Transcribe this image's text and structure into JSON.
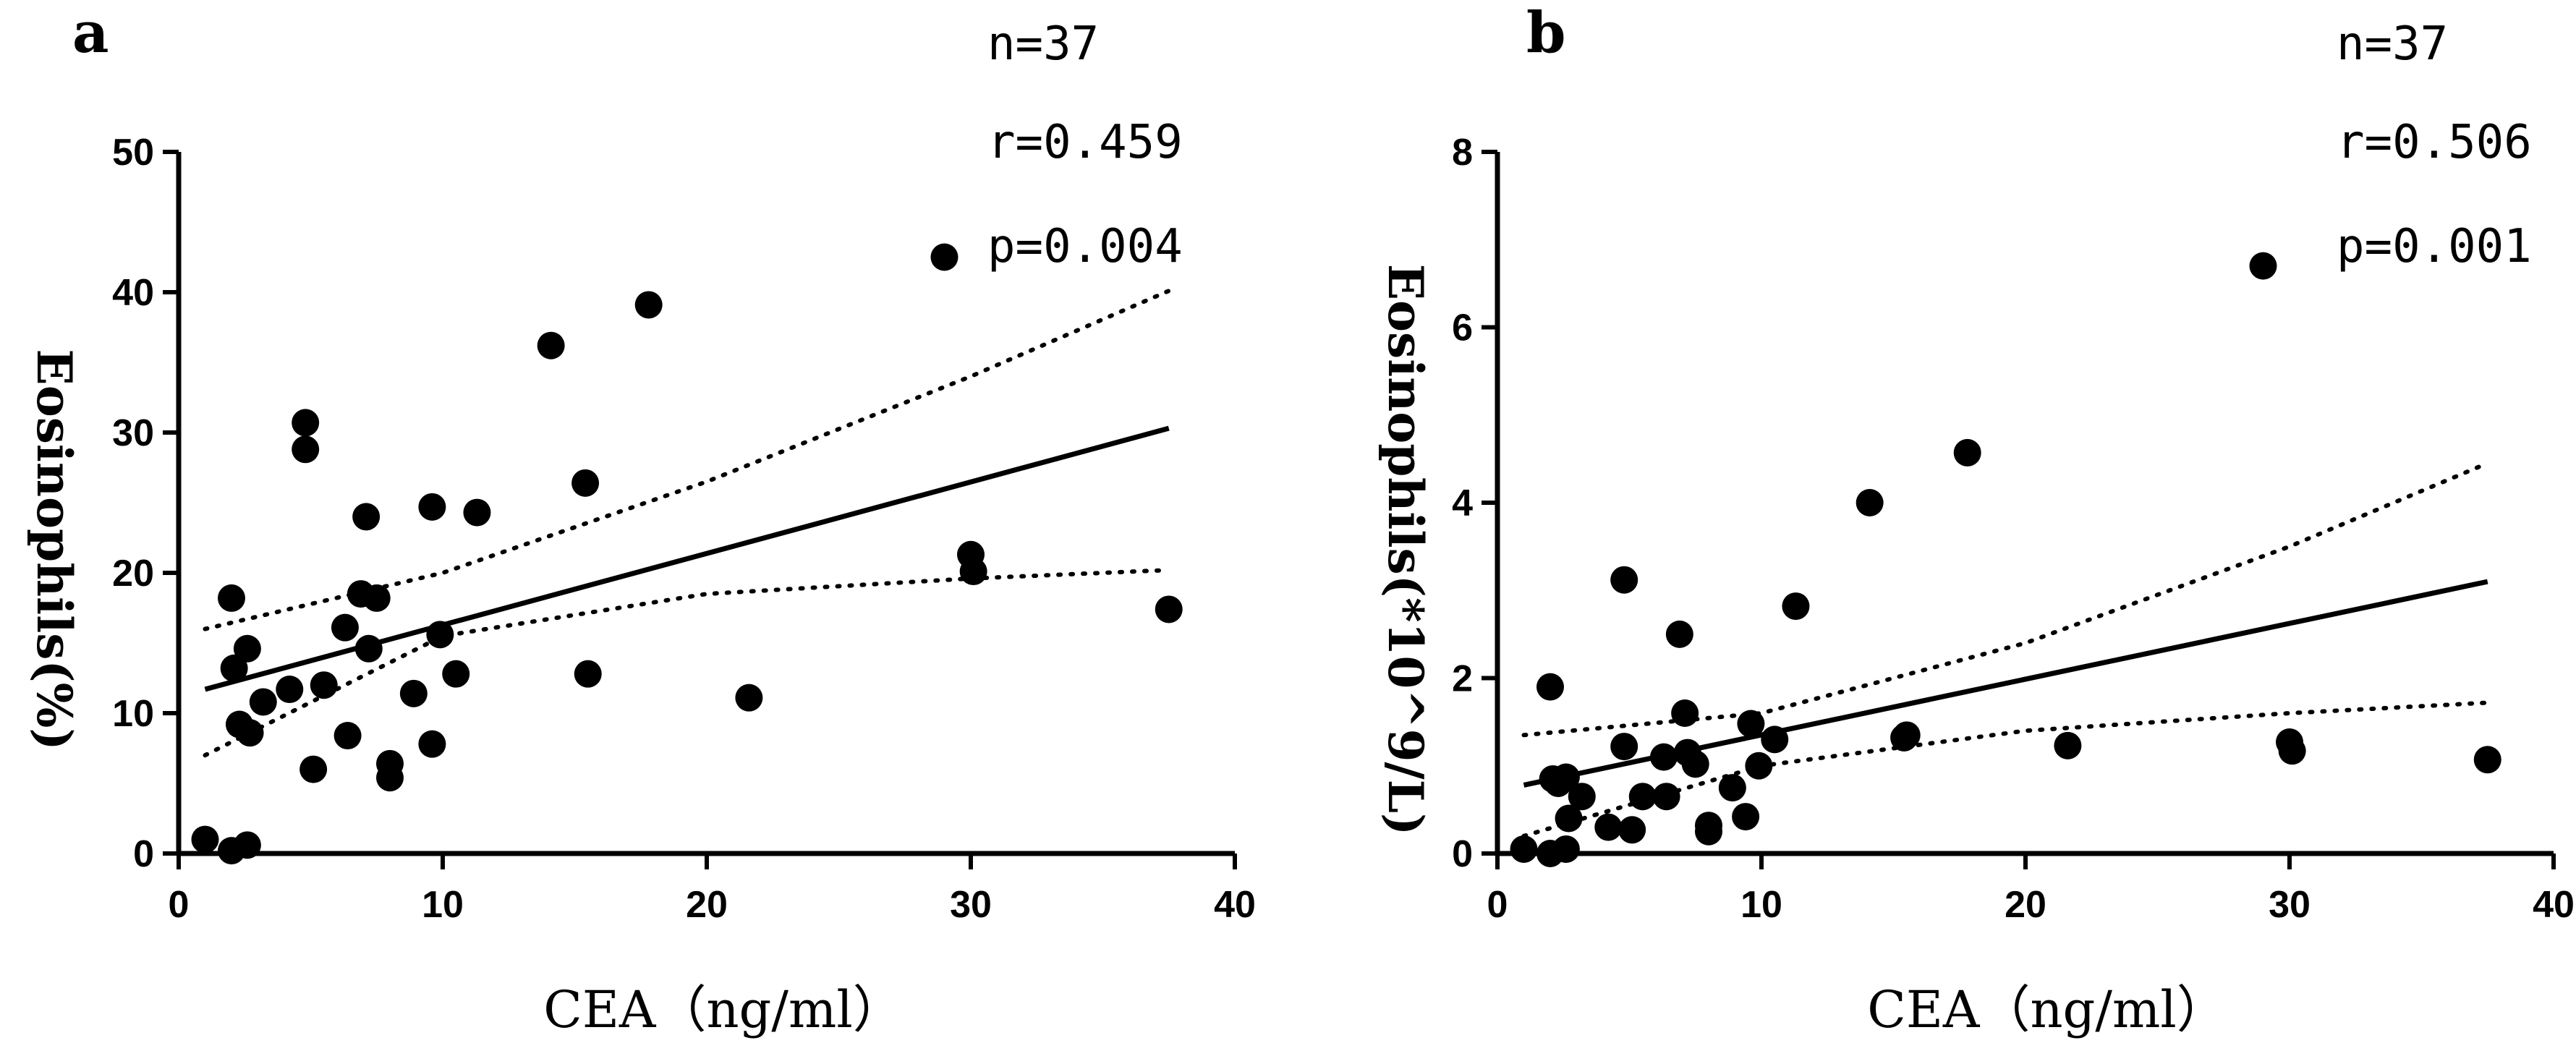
{
  "chart_data": [
    {
      "type": "scatter",
      "panel": "a",
      "title": "",
      "xlabel": "CEA（ng/ml）",
      "ylabel": "Eosinophils(%)",
      "xlim": [
        0,
        40
      ],
      "ylim": [
        0,
        50
      ],
      "xticks": [
        0,
        10,
        20,
        30,
        40
      ],
      "yticks": [
        0,
        10,
        20,
        30,
        40,
        50
      ],
      "stats": {
        "n": "n=37",
        "r": "r=0.459",
        "p": "p=0.004"
      },
      "points": [
        [
          1.0,
          1.0
        ],
        [
          2.0,
          0.2
        ],
        [
          2.6,
          0.6
        ],
        [
          2.0,
          18.2
        ],
        [
          2.1,
          13.2
        ],
        [
          2.3,
          9.2
        ],
        [
          2.6,
          14.6
        ],
        [
          2.7,
          8.6
        ],
        [
          3.2,
          10.8
        ],
        [
          4.2,
          11.7
        ],
        [
          4.8,
          30.7
        ],
        [
          4.8,
          28.8
        ],
        [
          5.1,
          6.0
        ],
        [
          5.5,
          12.0
        ],
        [
          6.3,
          16.1
        ],
        [
          6.4,
          8.4
        ],
        [
          6.9,
          18.5
        ],
        [
          7.1,
          24.0
        ],
        [
          7.2,
          14.6
        ],
        [
          7.5,
          18.2
        ],
        [
          8.0,
          6.4
        ],
        [
          8.0,
          5.4
        ],
        [
          8.9,
          11.4
        ],
        [
          9.6,
          24.7
        ],
        [
          9.6,
          7.8
        ],
        [
          9.9,
          15.6
        ],
        [
          10.5,
          12.8
        ],
        [
          11.3,
          24.3
        ],
        [
          14.1,
          36.2
        ],
        [
          15.4,
          26.4
        ],
        [
          15.5,
          12.8
        ],
        [
          17.8,
          39.1
        ],
        [
          21.6,
          11.1
        ],
        [
          29.0,
          42.5
        ],
        [
          30.0,
          21.3
        ],
        [
          30.1,
          20.1
        ],
        [
          37.5,
          17.4
        ]
      ],
      "fit": {
        "x": [
          1.0,
          37.5
        ],
        "y": [
          11.7,
          30.3
        ]
      },
      "ci_upper": {
        "x": [
          1.0,
          10,
          20,
          30,
          37.5
        ],
        "y": [
          16.0,
          20.0,
          26.5,
          34.0,
          40.1
        ]
      },
      "ci_lower": {
        "x": [
          1.0,
          10,
          20,
          30,
          37.5
        ],
        "y": [
          7.0,
          15.5,
          18.5,
          19.6,
          20.2
        ]
      }
    },
    {
      "type": "scatter",
      "panel": "b",
      "title": "",
      "xlabel": "CEA（ng/ml）",
      "ylabel": "Eosinophils(*10^9/L)",
      "xlim": [
        0,
        40
      ],
      "ylim": [
        0,
        8
      ],
      "xticks": [
        0,
        10,
        20,
        30,
        40
      ],
      "yticks": [
        0,
        2,
        4,
        6,
        8
      ],
      "stats": {
        "n": "n=37",
        "r": "r=0.506",
        "p": "p=0.001"
      },
      "points": [
        [
          1.0,
          0.05
        ],
        [
          2.0,
          1.9
        ],
        [
          2.0,
          0.0
        ],
        [
          2.1,
          0.85
        ],
        [
          2.3,
          0.8
        ],
        [
          2.6,
          0.87
        ],
        [
          2.6,
          0.05
        ],
        [
          2.7,
          0.4
        ],
        [
          3.2,
          0.65
        ],
        [
          4.2,
          0.3
        ],
        [
          4.8,
          3.12
        ],
        [
          4.8,
          1.22
        ],
        [
          5.1,
          0.27
        ],
        [
          5.5,
          0.65
        ],
        [
          6.3,
          1.1
        ],
        [
          6.4,
          0.65
        ],
        [
          6.9,
          2.5
        ],
        [
          7.1,
          1.6
        ],
        [
          7.2,
          1.15
        ],
        [
          7.5,
          1.02
        ],
        [
          8.0,
          0.25
        ],
        [
          8.0,
          0.32
        ],
        [
          8.9,
          0.75
        ],
        [
          9.4,
          0.42
        ],
        [
          9.6,
          1.48
        ],
        [
          9.9,
          1.0
        ],
        [
          10.5,
          1.3
        ],
        [
          11.3,
          2.82
        ],
        [
          14.1,
          4.0
        ],
        [
          15.4,
          1.32
        ],
        [
          15.5,
          1.35
        ],
        [
          17.8,
          4.57
        ],
        [
          21.6,
          1.23
        ],
        [
          29.0,
          6.7
        ],
        [
          30.0,
          1.27
        ],
        [
          30.1,
          1.17
        ],
        [
          37.5,
          1.07
        ]
      ],
      "fit": {
        "x": [
          1.0,
          37.5
        ],
        "y": [
          0.78,
          3.1
        ]
      },
      "ci_upper": {
        "x": [
          1.0,
          10,
          20,
          30,
          37.5
        ],
        "y": [
          1.35,
          1.6,
          2.4,
          3.5,
          4.45
        ]
      },
      "ci_lower": {
        "x": [
          1.0,
          10,
          20,
          30,
          37.5
        ],
        "y": [
          0.2,
          1.0,
          1.4,
          1.6,
          1.72
        ]
      }
    }
  ]
}
